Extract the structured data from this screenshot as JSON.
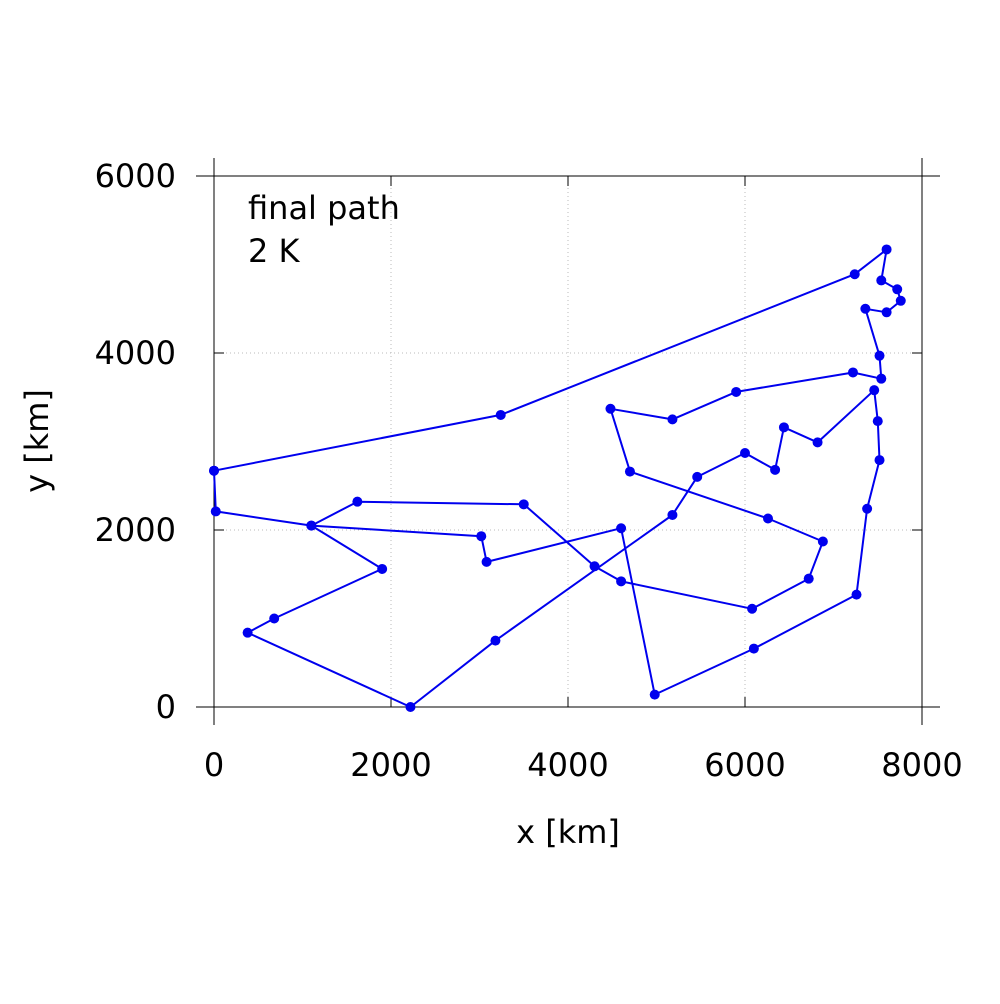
{
  "chart_data": {
    "type": "line",
    "annotations": [
      "final path",
      "2 K"
    ],
    "xlabel": "x [km]",
    "ylabel": "y [km]",
    "xlim": [
      0,
      8000
    ],
    "ylim": [
      0,
      6000
    ],
    "xticks": [
      0,
      2000,
      4000,
      6000,
      8000
    ],
    "yticks": [
      0,
      2000,
      4000,
      6000
    ],
    "grid": true,
    "marker": "circle",
    "colors": {
      "series": "#0000ee",
      "axis": "#000000",
      "grid": "#bbbbbb"
    },
    "series": [
      {
        "x": [
          0,
          3240,
          7240,
          7600,
          7540,
          7720,
          7760,
          7600,
          7360,
          7520,
          7540,
          7220,
          5900,
          5180,
          4480,
          4700,
          6260,
          6880,
          6720,
          6080,
          4600,
          4300,
          3500,
          1620,
          1100,
          1900,
          680,
          380,
          2220,
          3180,
          5180,
          5460,
          6000,
          6340,
          6440,
          6820,
          7460,
          7500,
          7520,
          7380,
          7260,
          6100,
          4980,
          4600,
          3080,
          3020,
          1100,
          20,
          0
        ],
        "y": [
          2670,
          3300,
          4890,
          5170,
          4820,
          4720,
          4590,
          4460,
          4500,
          3970,
          3710,
          3780,
          3560,
          3250,
          3370,
          2660,
          2130,
          1870,
          1450,
          1110,
          1420,
          1590,
          2290,
          2320,
          2050,
          1560,
          1000,
          840,
          0,
          750,
          2170,
          2600,
          2870,
          2680,
          3160,
          2990,
          3580,
          3230,
          2790,
          2240,
          1270,
          660,
          140,
          2020,
          1640,
          1930,
          2050,
          2210,
          2670
        ]
      }
    ]
  }
}
